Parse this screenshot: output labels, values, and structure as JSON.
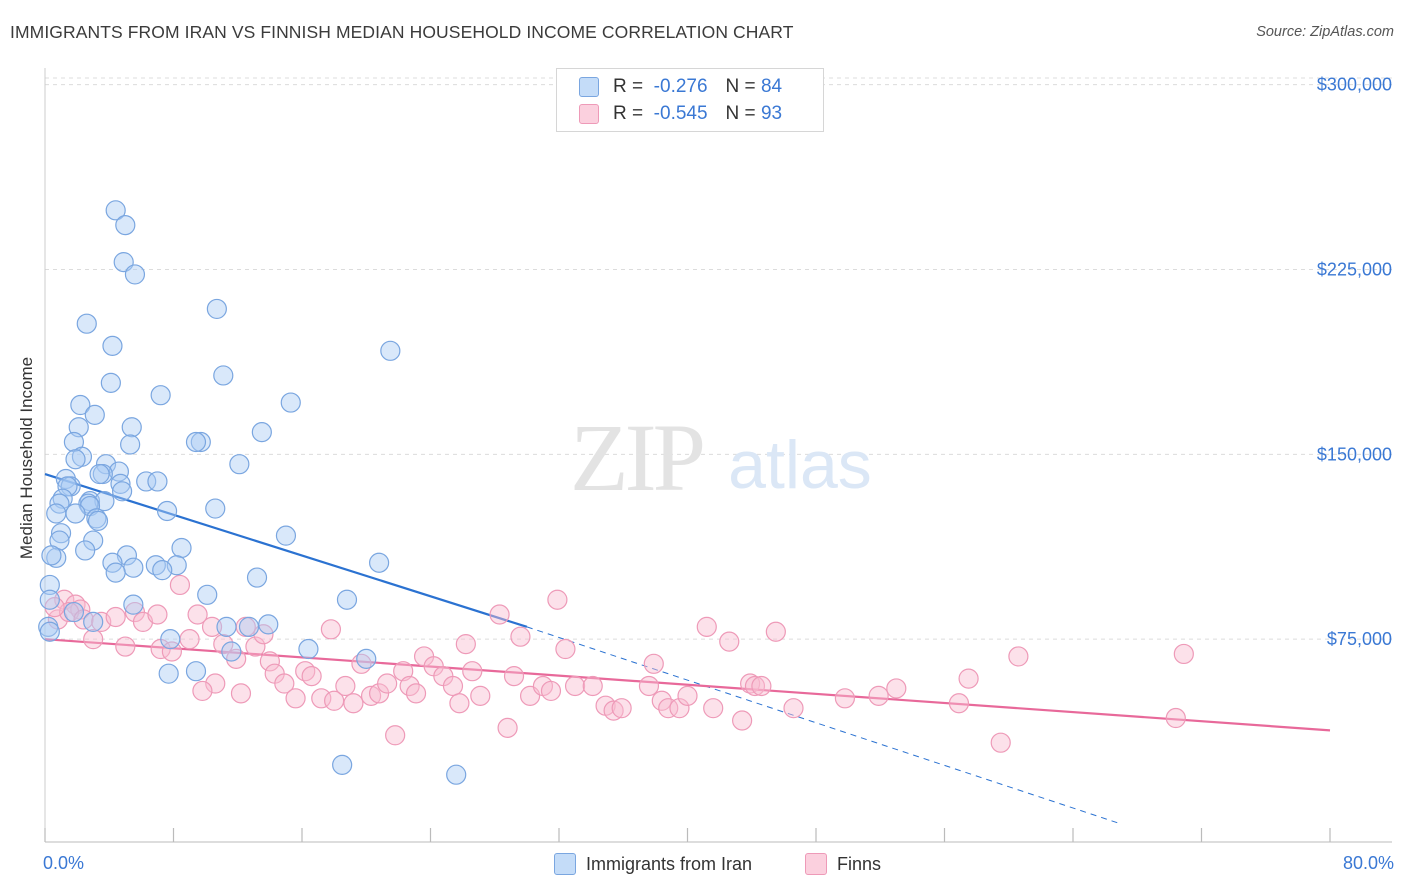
{
  "title": "IMMIGRANTS FROM IRAN VS FINNISH MEDIAN HOUSEHOLD INCOME CORRELATION CHART",
  "source": "Source: ZipAtlas.com",
  "watermark": {
    "zip": "ZIP",
    "atlas": "atlas"
  },
  "legend": {
    "rows": [
      {
        "r_label": "R =",
        "r_value": "-0.276",
        "n_label": "N =",
        "n_value": "84"
      },
      {
        "r_label": "R =",
        "r_value": "-0.545",
        "n_label": "N =",
        "n_value": "93"
      }
    ]
  },
  "colors": {
    "blue_fill": "#aaccf5",
    "blue_stroke": "#7aa6e0",
    "blue_line": "#2b72d1",
    "pink_fill": "#f8bcd0",
    "pink_stroke": "#ee9ab8",
    "pink_line": "#e8699a",
    "axis_text": "#3a78d4",
    "grid": "#dcdcdc"
  },
  "chart_data": {
    "type": "scatter",
    "title": "IMMIGRANTS FROM IRAN VS FINNISH MEDIAN HOUSEHOLD INCOME CORRELATION CHART",
    "xlabel": "",
    "ylabel": "Median Household Income",
    "xlim": [
      0,
      80
    ],
    "ylim": [
      0,
      310000
    ],
    "x_tick_labels": [
      "0.0%",
      "80.0%"
    ],
    "y_ticks": [
      75000,
      150000,
      225000,
      300000
    ],
    "y_tick_labels": [
      "$75,000",
      "$150,000",
      "$225,000",
      "$300,000"
    ],
    "grid": true,
    "legend_position": "top-center",
    "series": [
      {
        "name": "Immigrants from Iran",
        "r": -0.276,
        "n": 84,
        "trend": {
          "x": [
            0,
            30
          ],
          "y": [
            142000,
            80000
          ],
          "dashed_to": [
            67,
            0
          ]
        },
        "points": [
          [
            4.4,
            249000
          ],
          [
            5.0,
            243000
          ],
          [
            4.9,
            228000
          ],
          [
            5.6,
            223000
          ],
          [
            10.7,
            209000
          ],
          [
            2.6,
            203000
          ],
          [
            4.2,
            194000
          ],
          [
            21.5,
            192000
          ],
          [
            11.1,
            182000
          ],
          [
            4.1,
            179000
          ],
          [
            7.2,
            174000
          ],
          [
            15.3,
            171000
          ],
          [
            2.2,
            170000
          ],
          [
            3.1,
            166000
          ],
          [
            5.4,
            161000
          ],
          [
            13.5,
            159000
          ],
          [
            2.1,
            161000
          ],
          [
            1.8,
            155000
          ],
          [
            9.7,
            155000
          ],
          [
            9.4,
            155000
          ],
          [
            5.3,
            154000
          ],
          [
            2.3,
            149000
          ],
          [
            1.9,
            148000
          ],
          [
            3.8,
            146000
          ],
          [
            12.1,
            146000
          ],
          [
            4.6,
            143000
          ],
          [
            3.6,
            142000
          ],
          [
            3.4,
            142000
          ],
          [
            1.3,
            140000
          ],
          [
            6.3,
            139000
          ],
          [
            7.0,
            139000
          ],
          [
            1.6,
            137000
          ],
          [
            1.4,
            137000
          ],
          [
            4.7,
            138000
          ],
          [
            4.8,
            135000
          ],
          [
            1.1,
            132000
          ],
          [
            0.9,
            130000
          ],
          [
            2.8,
            131000
          ],
          [
            3.7,
            131000
          ],
          [
            2.7,
            130000
          ],
          [
            2.8,
            129000
          ],
          [
            10.6,
            128000
          ],
          [
            7.6,
            127000
          ],
          [
            0.7,
            126000
          ],
          [
            1.9,
            126000
          ],
          [
            3.2,
            124000
          ],
          [
            3.3,
            123000
          ],
          [
            15.0,
            117000
          ],
          [
            3.0,
            115000
          ],
          [
            1.0,
            118000
          ],
          [
            0.9,
            115000
          ],
          [
            8.5,
            112000
          ],
          [
            0.7,
            108000
          ],
          [
            0.4,
            109000
          ],
          [
            5.1,
            109000
          ],
          [
            20.8,
            106000
          ],
          [
            2.5,
            111000
          ],
          [
            4.2,
            106000
          ],
          [
            6.9,
            105000
          ],
          [
            8.2,
            105000
          ],
          [
            5.5,
            104000
          ],
          [
            7.3,
            103000
          ],
          [
            4.4,
            102000
          ],
          [
            13.2,
            100000
          ],
          [
            0.3,
            97000
          ],
          [
            10.1,
            93000
          ],
          [
            18.8,
            91000
          ],
          [
            0.3,
            91000
          ],
          [
            5.5,
            89000
          ],
          [
            1.8,
            86000
          ],
          [
            3.0,
            82000
          ],
          [
            13.9,
            81000
          ],
          [
            11.3,
            80000
          ],
          [
            12.7,
            80000
          ],
          [
            0.2,
            80000
          ],
          [
            0.3,
            78000
          ],
          [
            7.8,
            75000
          ],
          [
            11.6,
            70000
          ],
          [
            20.0,
            67000
          ],
          [
            16.4,
            71000
          ],
          [
            9.4,
            62000
          ],
          [
            7.7,
            61000
          ],
          [
            18.5,
            24000
          ],
          [
            25.6,
            20000
          ]
        ]
      },
      {
        "name": "Finns",
        "r": -0.545,
        "n": 93,
        "trend": {
          "x": [
            0,
            80
          ],
          "y": [
            75000,
            38000
          ]
        },
        "points": [
          [
            0.8,
            83000
          ],
          [
            1.2,
            91000
          ],
          [
            1.9,
            89000
          ],
          [
            2.2,
            87000
          ],
          [
            1.5,
            86000
          ],
          [
            0.6,
            88000
          ],
          [
            2.4,
            83000
          ],
          [
            3.5,
            82000
          ],
          [
            4.4,
            84000
          ],
          [
            5.0,
            72000
          ],
          [
            3.0,
            75000
          ],
          [
            5.6,
            86000
          ],
          [
            6.1,
            82000
          ],
          [
            7.2,
            71000
          ],
          [
            7.0,
            85000
          ],
          [
            7.9,
            70000
          ],
          [
            8.4,
            97000
          ],
          [
            9.0,
            75000
          ],
          [
            9.5,
            85000
          ],
          [
            10.4,
            80000
          ],
          [
            10.6,
            57000
          ],
          [
            9.8,
            54000
          ],
          [
            11.1,
            73000
          ],
          [
            12.5,
            80000
          ],
          [
            11.9,
            67000
          ],
          [
            12.2,
            53000
          ],
          [
            13.1,
            72000
          ],
          [
            13.6,
            77000
          ],
          [
            14.0,
            66000
          ],
          [
            14.3,
            61000
          ],
          [
            14.9,
            57000
          ],
          [
            15.6,
            51000
          ],
          [
            16.2,
            62000
          ],
          [
            16.6,
            60000
          ],
          [
            17.8,
            79000
          ],
          [
            17.2,
            51000
          ],
          [
            18.0,
            50000
          ],
          [
            18.7,
            56000
          ],
          [
            19.2,
            49000
          ],
          [
            19.7,
            65000
          ],
          [
            20.3,
            52000
          ],
          [
            20.8,
            53000
          ],
          [
            21.3,
            57000
          ],
          [
            21.8,
            36000
          ],
          [
            22.3,
            62000
          ],
          [
            22.7,
            56000
          ],
          [
            23.1,
            53000
          ],
          [
            23.6,
            68000
          ],
          [
            24.2,
            64000
          ],
          [
            24.8,
            60000
          ],
          [
            25.4,
            56000
          ],
          [
            25.8,
            49000
          ],
          [
            26.2,
            73000
          ],
          [
            26.6,
            62000
          ],
          [
            27.1,
            52000
          ],
          [
            28.3,
            85000
          ],
          [
            28.8,
            39000
          ],
          [
            29.2,
            60000
          ],
          [
            29.6,
            76000
          ],
          [
            30.2,
            52000
          ],
          [
            31.0,
            56000
          ],
          [
            31.5,
            54000
          ],
          [
            31.9,
            91000
          ],
          [
            32.4,
            71000
          ],
          [
            33.0,
            56000
          ],
          [
            34.1,
            56000
          ],
          [
            34.9,
            48000
          ],
          [
            35.4,
            46000
          ],
          [
            35.9,
            47000
          ],
          [
            37.6,
            56000
          ],
          [
            37.9,
            65000
          ],
          [
            38.4,
            50000
          ],
          [
            38.8,
            47000
          ],
          [
            39.5,
            47000
          ],
          [
            40.0,
            52000
          ],
          [
            41.2,
            80000
          ],
          [
            41.6,
            47000
          ],
          [
            42.6,
            74000
          ],
          [
            43.4,
            42000
          ],
          [
            43.9,
            57000
          ],
          [
            44.2,
            56000
          ],
          [
            44.6,
            56000
          ],
          [
            45.5,
            78000
          ],
          [
            46.6,
            47000
          ],
          [
            49.8,
            51000
          ],
          [
            51.9,
            52000
          ],
          [
            53.0,
            55000
          ],
          [
            56.9,
            49000
          ],
          [
            57.5,
            59000
          ],
          [
            59.5,
            33000
          ],
          [
            60.6,
            68000
          ],
          [
            70.4,
            43000
          ],
          [
            70.9,
            69000
          ]
        ]
      }
    ]
  }
}
